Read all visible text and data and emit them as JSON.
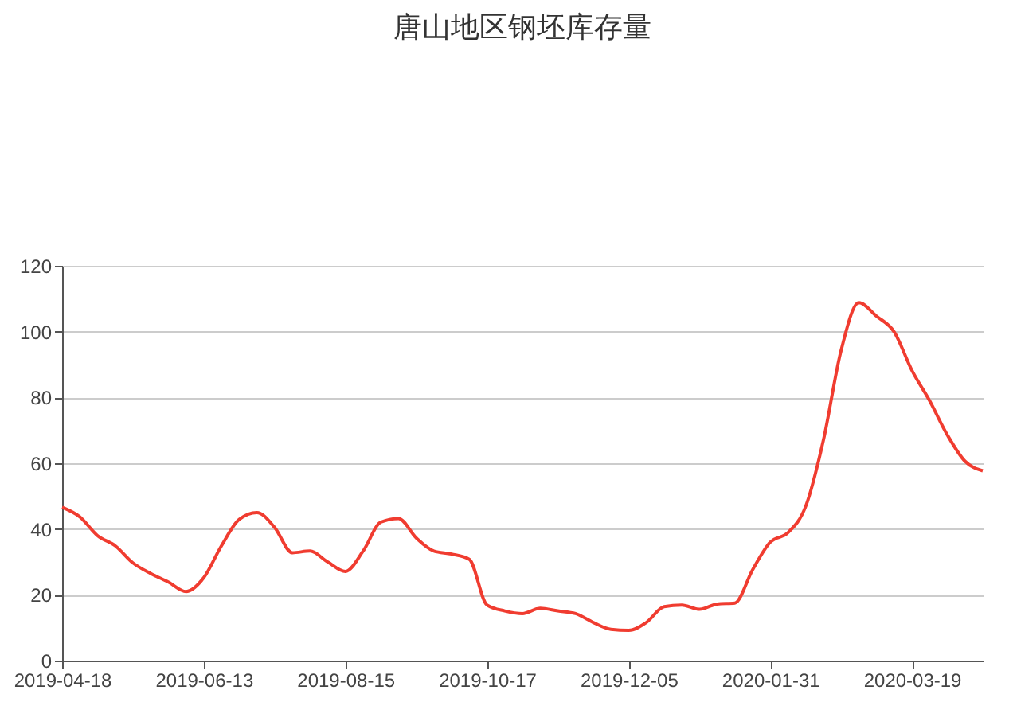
{
  "chart_data": {
    "type": "line",
    "title": "唐山地区钢坯库存量",
    "categories": [
      "2019-04-18",
      null,
      null,
      null,
      null,
      null,
      null,
      null,
      "2019-06-13",
      null,
      null,
      null,
      null,
      null,
      null,
      null,
      "2019-08-15",
      null,
      null,
      null,
      null,
      null,
      null,
      null,
      "2019-10-17",
      null,
      null,
      null,
      null,
      null,
      null,
      null,
      "2019-12-05",
      null,
      null,
      null,
      null,
      null,
      null,
      null,
      "2020-01-31",
      null,
      null,
      null,
      null,
      null,
      null,
      null,
      "2020-03-19",
      null,
      null,
      null,
      null
    ],
    "series": [
      {
        "color": "#f03c30",
        "values": [
          46.6,
          43.7,
          38,
          34.9,
          29.7,
          26.5,
          23.9,
          21,
          25.2,
          34.9,
          42.9,
          45,
          40.5,
          32.8,
          33.3,
          30,
          27.1,
          33.3,
          42.1,
          43.2,
          37.3,
          33.3,
          32.4,
          30.8,
          16.9,
          15.1,
          14.3,
          15.9,
          15.1,
          14.3,
          11.6,
          9.5,
          9.2,
          11.6,
          16.4,
          16.9,
          15.6,
          17.2,
          17.5,
          27.6,
          36,
          38.9,
          46.9,
          67,
          94.3,
          108.8,
          104.7,
          99.9,
          88.2,
          79,
          68.6,
          60.6,
          57.7
        ]
      }
    ],
    "ylim": [
      0,
      120
    ],
    "yticks": [
      0,
      20,
      40,
      60,
      80,
      100,
      120
    ],
    "grid": "y"
  }
}
